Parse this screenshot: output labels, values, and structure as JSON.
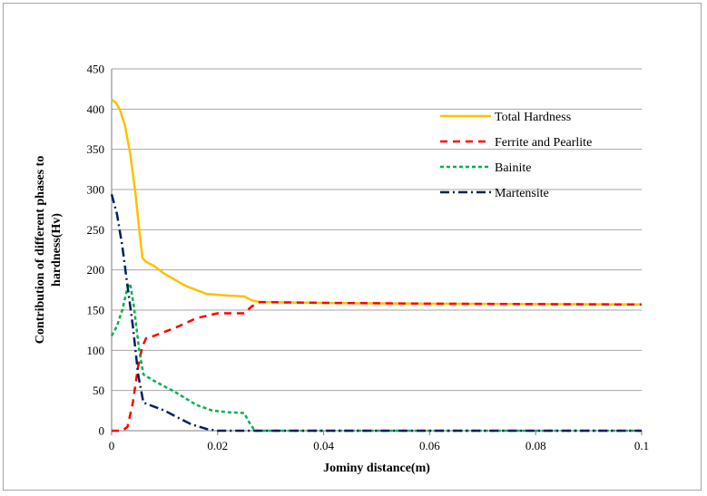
{
  "chart_data": {
    "type": "line",
    "title": "",
    "xlabel": "Jominy distance(m)",
    "ylabel_lines": [
      "Contribution of different phases to",
      "hardness(Hv)"
    ],
    "xlim": [
      0,
      0.1
    ],
    "ylim": [
      0,
      450
    ],
    "x_ticks": [
      0,
      0.02,
      0.04,
      0.06,
      0.08,
      0.1
    ],
    "x_tick_labels": [
      "0",
      "0.02",
      "0.04",
      "0.06",
      "0.08",
      "0.1"
    ],
    "y_ticks": [
      0,
      50,
      100,
      150,
      200,
      250,
      300,
      350,
      400,
      450
    ],
    "y_tick_labels": [
      "0",
      "50",
      "100",
      "150",
      "200",
      "250",
      "300",
      "350",
      "400",
      "450"
    ],
    "grid": "horizontal",
    "legend_position": "top-right",
    "series": [
      {
        "name": "Total Hardness",
        "color": "#ffc000",
        "dash": "solid",
        "points": [
          [
            0,
            412
          ],
          [
            0.0008,
            408
          ],
          [
            0.0015,
            400
          ],
          [
            0.0025,
            380
          ],
          [
            0.0035,
            345
          ],
          [
            0.0045,
            295
          ],
          [
            0.0052,
            250
          ],
          [
            0.0058,
            215
          ],
          [
            0.0065,
            210
          ],
          [
            0.008,
            205
          ],
          [
            0.01,
            195
          ],
          [
            0.014,
            180
          ],
          [
            0.018,
            170
          ],
          [
            0.022,
            168
          ],
          [
            0.025,
            167
          ],
          [
            0.0265,
            162
          ],
          [
            0.028,
            160
          ],
          [
            0.04,
            159
          ],
          [
            0.06,
            158
          ],
          [
            0.08,
            157.5
          ],
          [
            0.1,
            157
          ]
        ]
      },
      {
        "name": "Ferrite and Pearlite",
        "color": "#ff0000",
        "dash": "8,6",
        "points": [
          [
            0,
            0
          ],
          [
            0.002,
            0
          ],
          [
            0.003,
            5
          ],
          [
            0.004,
            35
          ],
          [
            0.005,
            80
          ],
          [
            0.0058,
            105
          ],
          [
            0.0065,
            115
          ],
          [
            0.008,
            118
          ],
          [
            0.012,
            128
          ],
          [
            0.016,
            140
          ],
          [
            0.02,
            146
          ],
          [
            0.025,
            146
          ],
          [
            0.0265,
            155
          ],
          [
            0.028,
            160
          ],
          [
            0.04,
            159
          ],
          [
            0.06,
            158
          ],
          [
            0.08,
            157.5
          ],
          [
            0.1,
            157
          ]
        ]
      },
      {
        "name": "Bainite",
        "color": "#00b050",
        "dash": "4,3",
        "points": [
          [
            0,
            118
          ],
          [
            0.001,
            130
          ],
          [
            0.002,
            150
          ],
          [
            0.003,
            178
          ],
          [
            0.0035,
            183
          ],
          [
            0.0042,
            155
          ],
          [
            0.0052,
            100
          ],
          [
            0.006,
            70
          ],
          [
            0.008,
            62
          ],
          [
            0.012,
            48
          ],
          [
            0.016,
            32
          ],
          [
            0.019,
            25
          ],
          [
            0.022,
            23
          ],
          [
            0.025,
            22
          ],
          [
            0.026,
            10
          ],
          [
            0.027,
            0
          ],
          [
            0.03,
            0
          ],
          [
            0.1,
            0
          ]
        ]
      },
      {
        "name": "Martensite",
        "color": "#002060",
        "dash": "10,4,2,4",
        "points": [
          [
            0,
            294
          ],
          [
            0.001,
            270
          ],
          [
            0.002,
            230
          ],
          [
            0.003,
            180
          ],
          [
            0.004,
            130
          ],
          [
            0.005,
            70
          ],
          [
            0.006,
            35
          ],
          [
            0.008,
            30
          ],
          [
            0.01,
            25
          ],
          [
            0.012,
            18
          ],
          [
            0.015,
            8
          ],
          [
            0.018,
            2
          ],
          [
            0.02,
            0
          ],
          [
            0.03,
            0
          ],
          [
            0.1,
            0
          ]
        ]
      }
    ]
  }
}
